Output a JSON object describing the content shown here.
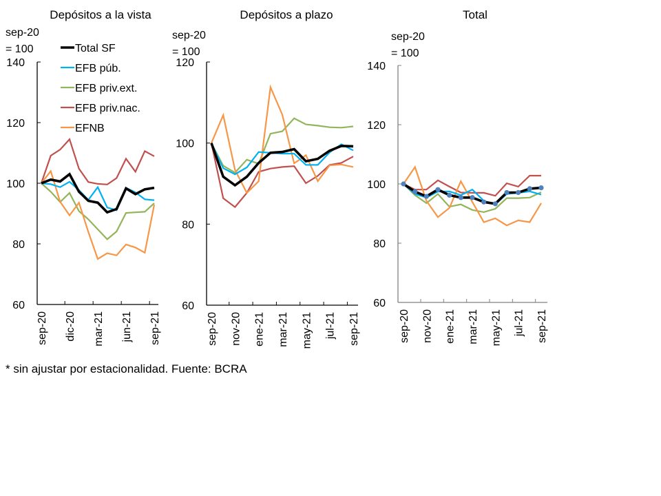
{
  "chart_data": [
    {
      "type": "line",
      "title": "Depósitos a la vista",
      "unit_label": [
        "sep-20",
        "= 100"
      ],
      "xlabel": "",
      "ylabel": "sep-20 = 100",
      "ylim": [
        60,
        140
      ],
      "yticks": [
        60,
        80,
        100,
        120,
        140
      ],
      "x": [
        "sep-20",
        "oct-20",
        "nov-20",
        "dic-20",
        "ene-21",
        "feb-21",
        "mar-21",
        "abr-21",
        "may-21",
        "jun-21",
        "jul-21",
        "ago-21",
        "sep-21"
      ],
      "xtick_labels": [
        "sep-20",
        "dic-20",
        "mar-21",
        "jun-21",
        "sep-21"
      ],
      "xtick_step": 3,
      "grid": false,
      "legend": "top-right",
      "series": [
        {
          "name": "Total SF",
          "color": "#000000",
          "values": [
            100,
            101.2,
            100.6,
            103.0,
            97.2,
            94.2,
            93.6,
            90.4,
            91.5,
            98.3,
            96.4,
            98.0,
            98.5
          ]
        },
        {
          "name": "EFB púb.",
          "color": "#00b0f0",
          "values": [
            100,
            99.7,
            98.7,
            100.5,
            97.7,
            94.5,
            98.7,
            92.0,
            91.1,
            98.5,
            97.0,
            94.7,
            94.4
          ]
        },
        {
          "name": "EFB priv.ext.",
          "color": "#92b45a",
          "values": [
            100,
            97.2,
            93.8,
            96.8,
            90.8,
            88.1,
            84.8,
            81.5,
            84.1,
            90.2,
            90.4,
            90.6,
            93.4
          ]
        },
        {
          "name": "EFB priv.nac.",
          "color": "#c0504d",
          "values": [
            100,
            109.1,
            111.1,
            114.5,
            104.8,
            100.4,
            99.8,
            99.6,
            101.7,
            108.1,
            103.8,
            110.6,
            108.9
          ]
        },
        {
          "name": "EFNB",
          "color": "#f79646",
          "values": [
            100,
            104.0,
            93.9,
            89.4,
            93.6,
            83.9,
            75.0,
            76.9,
            76.2,
            79.8,
            78.8,
            77.1,
            92.9
          ]
        }
      ]
    },
    {
      "type": "line",
      "title": "Depósitos a plazo",
      "unit_label": [
        "sep-20",
        "= 100"
      ],
      "xlabel": "",
      "ylabel": "sep-20 = 100",
      "ylim": [
        60,
        120
      ],
      "yticks": [
        60,
        80,
        100,
        120
      ],
      "x": [
        "sep-20",
        "oct-20",
        "nov-20",
        "dic-20",
        "ene-21",
        "feb-21",
        "mar-21",
        "abr-21",
        "may-21",
        "jun-21",
        "jul-21",
        "ago-21",
        "sep-21"
      ],
      "xtick_labels": [
        "sep-20",
        "nov-20",
        "ene-21",
        "mar-21",
        "may-21",
        "jul-21",
        "sep-21"
      ],
      "xtick_step": 2,
      "grid": false,
      "legend": "none",
      "series": [
        {
          "name": "Total SF",
          "color": "#000000",
          "values": [
            100,
            91.7,
            89.6,
            91.7,
            95.1,
            97.6,
            97.8,
            98.5,
            95.5,
            96.1,
            98.1,
            99.3,
            99.2
          ]
        },
        {
          "name": "EFB púb.",
          "color": "#00b0f0",
          "values": [
            100,
            93.8,
            92.3,
            94.0,
            97.8,
            97.6,
            97.4,
            97.4,
            94.6,
            94.6,
            97.7,
            99.7,
            98.2
          ]
        },
        {
          "name": "EFB priv.ext.",
          "color": "#92b45a",
          "values": [
            100,
            94.4,
            92.7,
            95.9,
            94.9,
            102.3,
            102.9,
            106.1,
            104.6,
            104.3,
            103.9,
            103.8,
            104.1
          ]
        },
        {
          "name": "EFB priv.nac.",
          "color": "#c0504d",
          "values": [
            100,
            86.4,
            84.2,
            87.7,
            92.9,
            93.7,
            94.1,
            94.3,
            90.1,
            91.9,
            94.6,
            95.1,
            96.7
          ]
        },
        {
          "name": "EFNB",
          "color": "#f79646",
          "values": [
            100,
            106.9,
            93.4,
            87.7,
            90.6,
            113.8,
            107.0,
            95.0,
            97.0,
            90.6,
            94.5,
            94.7,
            94.1
          ]
        }
      ]
    },
    {
      "type": "line",
      "title": "Total",
      "unit_label": [
        "sep-20",
        "= 100"
      ],
      "xlabel": "",
      "ylabel": "sep-20 = 100",
      "ylim": [
        60,
        140
      ],
      "yticks": [
        60,
        80,
        100,
        120,
        140
      ],
      "x": [
        "sep-20",
        "oct-20",
        "nov-20",
        "dic-20",
        "ene-21",
        "feb-21",
        "mar-21",
        "abr-21",
        "may-21",
        "jun-21",
        "jul-21",
        "ago-21",
        "sep-21"
      ],
      "xtick_labels": [
        "sep-20",
        "nov-20",
        "ene-21",
        "mar-21",
        "may-21",
        "jul-21",
        "sep-21"
      ],
      "xtick_step": 2,
      "grid": false,
      "legend": "none",
      "series": [
        {
          "name": "Total SF",
          "color": "#000000",
          "marker_color": "#4f81bd",
          "values": [
            100,
            97.4,
            95.8,
            98.1,
            96.2,
            95.4,
            95.4,
            93.9,
            93.3,
            97.1,
            97.1,
            98.4,
            98.7
          ]
        },
        {
          "name": "EFB púb.",
          "color": "#00b0f0",
          "values": [
            100,
            96.6,
            95.4,
            97.4,
            97.5,
            96.2,
            98.1,
            94.3,
            93.1,
            96.6,
            97.0,
            97.5,
            96.4
          ]
        },
        {
          "name": "EFB priv.ext.",
          "color": "#92b45a",
          "values": [
            100,
            96.2,
            93.5,
            96.6,
            92.3,
            93.1,
            91.2,
            90.5,
            91.6,
            95.2,
            95.2,
            95.4,
            97.2
          ]
        },
        {
          "name": "EFB priv.nac.",
          "color": "#c0504d",
          "values": [
            100,
            98.1,
            98.1,
            101.2,
            99.1,
            97.1,
            97.0,
            97.0,
            96.0,
            100.2,
            99.1,
            102.8,
            102.8
          ]
        },
        {
          "name": "EFNB",
          "color": "#f79646",
          "values": [
            100,
            105.7,
            94.3,
            88.8,
            91.9,
            100.9,
            93.9,
            87.1,
            88.4,
            86.0,
            87.7,
            87.1,
            93.5
          ]
        }
      ]
    }
  ],
  "footnote": "* sin ajustar por estacionalidad. Fuente: BCRA"
}
